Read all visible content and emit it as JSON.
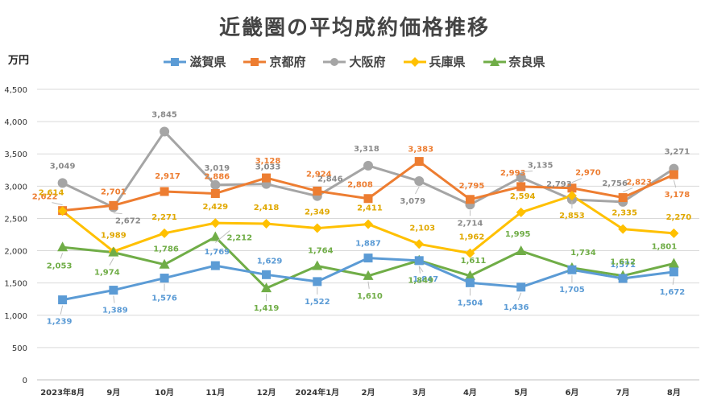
{
  "chart_data": {
    "type": "line",
    "title": "近畿圏の平均成約価格推移",
    "ylabel": "万円",
    "xlabel": "",
    "ylim": [
      0,
      4500
    ],
    "yticks": [
      0,
      500,
      1000,
      1500,
      2000,
      2500,
      3000,
      3500,
      4000,
      4500
    ],
    "ytick_labels": [
      "0",
      "500",
      "1,000",
      "1,500",
      "2,000",
      "2,500",
      "3,000",
      "3,500",
      "4,000",
      "4,500"
    ],
    "categories": [
      "2023年8月",
      "9月",
      "10月",
      "11月",
      "12月",
      "2024年1月",
      "2月",
      "3月",
      "4月",
      "5月",
      "6月",
      "7月",
      "8月"
    ],
    "grid": true,
    "legend_position": "top",
    "series": [
      {
        "name": "滋賀県",
        "color": "#5b9bd5",
        "marker": "square",
        "values": [
          1239,
          1389,
          1576,
          1769,
          1629,
          1522,
          1887,
          1847,
          1504,
          1436,
          1705,
          1571,
          1672
        ],
        "labels": [
          "1,239",
          "1,389",
          "1,576",
          "1,769",
          "1,629",
          "1,522",
          "1,887",
          "1,847",
          "1,504",
          "1,436",
          "1,705",
          "1,571",
          "1,672"
        ]
      },
      {
        "name": "京都府",
        "color": "#ed7d31",
        "marker": "square",
        "values": [
          2622,
          2701,
          2917,
          2886,
          3128,
          2924,
          2808,
          3383,
          2795,
          2993,
          2970,
          2823,
          3178
        ],
        "labels": [
          "2,622",
          "2,701",
          "2,917",
          "2,886",
          "3,128",
          "2,924",
          "2,808",
          "3,383",
          "2,795",
          "2,993",
          "2,970",
          "2,823",
          "3,178"
        ]
      },
      {
        "name": "大阪府",
        "color": "#a5a5a5",
        "marker": "circle",
        "values": [
          3049,
          2672,
          3845,
          3019,
          3033,
          2846,
          3318,
          3079,
          2714,
          3135,
          2793,
          2756,
          3271
        ],
        "labels": [
          "3,049",
          "2,672",
          "3,845",
          "3,019",
          "3,033",
          "2,846",
          "3,318",
          "3,079",
          "2,714",
          "3,135",
          "2,793",
          "2,756",
          "3,271"
        ]
      },
      {
        "name": "兵庫県",
        "color": "#ffc000",
        "marker": "diamond",
        "values": [
          2614,
          1989,
          2271,
          2429,
          2418,
          2349,
          2411,
          2103,
          1962,
          2594,
          2853,
          2335,
          2270
        ],
        "labels": [
          "2,614",
          "1,989",
          "2,271",
          "2,429",
          "2,418",
          "2,349",
          "2,411",
          "2,103",
          "1,962",
          "2,594",
          "2,853",
          "2,335",
          "2,270"
        ]
      },
      {
        "name": "奈良県",
        "color": "#70ad47",
        "marker": "triangle",
        "values": [
          2053,
          1974,
          1786,
          2212,
          1419,
          1764,
          1610,
          1849,
          1611,
          1995,
          1734,
          1612,
          1801
        ],
        "labels": [
          "2,053",
          "1,974",
          "1,786",
          "2,212",
          "1,419",
          "1,764",
          "1,610",
          "1,849",
          "1,611",
          "1,995",
          "1,734",
          "1,612",
          "1,801"
        ]
      }
    ]
  }
}
